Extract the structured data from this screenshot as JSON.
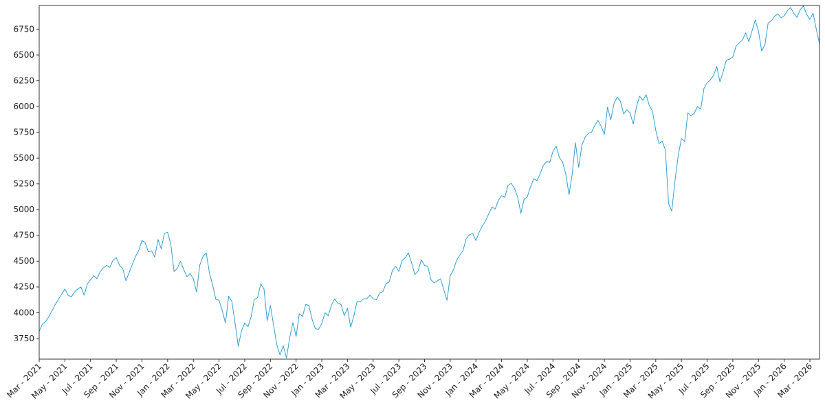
{
  "chart_data": {
    "type": "line",
    "title": "",
    "xlabel": "",
    "ylabel": "",
    "grid": false,
    "legend_position": "none",
    "line_color": "#2e9fd6",
    "axis_color": "#333333",
    "background": "#ffffff",
    "ylim": [
      3550,
      6980
    ],
    "y_ticks": [
      3750,
      4000,
      4250,
      4500,
      4750,
      5000,
      5250,
      5500,
      5750,
      6000,
      6250,
      6500,
      6750
    ],
    "points_per_month": 4,
    "x_ticks": [
      {
        "label": "Mar - 2021",
        "month": 0
      },
      {
        "label": "May - 2021",
        "month": 2
      },
      {
        "label": "Jul - 2021",
        "month": 4
      },
      {
        "label": "Sep - 2021",
        "month": 6
      },
      {
        "label": "Nov - 2021",
        "month": 8
      },
      {
        "label": "Jan - 2022",
        "month": 10
      },
      {
        "label": "Mar - 2022",
        "month": 12
      },
      {
        "label": "May - 2022",
        "month": 14
      },
      {
        "label": "Jul - 2022",
        "month": 16
      },
      {
        "label": "Sep - 2022",
        "month": 18
      },
      {
        "label": "Nov - 2022",
        "month": 20
      },
      {
        "label": "Jan - 2023",
        "month": 22
      },
      {
        "label": "Mar - 2023",
        "month": 24
      },
      {
        "label": "May - 2023",
        "month": 26
      },
      {
        "label": "Jul - 2023",
        "month": 28
      },
      {
        "label": "Sep - 2023",
        "month": 30
      },
      {
        "label": "Nov - 2023",
        "month": 32
      },
      {
        "label": "Jan - 2024",
        "month": 34
      },
      {
        "label": "Mar - 2024",
        "month": 36
      },
      {
        "label": "May - 2024",
        "month": 38
      },
      {
        "label": "Jul - 2024",
        "month": 40
      },
      {
        "label": "Sep - 2024",
        "month": 42
      },
      {
        "label": "Nov - 2024",
        "month": 44
      },
      {
        "label": "Jan - 2025",
        "month": 46
      },
      {
        "label": "Mar - 2025",
        "month": 48
      },
      {
        "label": "May - 2025",
        "month": 50
      },
      {
        "label": "Jul - 2025",
        "month": 52
      },
      {
        "label": "Sep - 2025",
        "month": 54
      },
      {
        "label": "Nov - 2025",
        "month": 56
      },
      {
        "label": "Jan - 2026",
        "month": 58
      },
      {
        "label": "Mar - 2026",
        "month": 60
      }
    ],
    "values": [
      3820,
      3890,
      3915,
      3960,
      4020,
      4080,
      4130,
      4180,
      4230,
      4170,
      4155,
      4200,
      4230,
      4250,
      4170,
      4280,
      4320,
      4360,
      4330,
      4400,
      4435,
      4460,
      4440,
      4510,
      4535,
      4460,
      4430,
      4310,
      4390,
      4470,
      4545,
      4605,
      4700,
      4680,
      4590,
      4600,
      4540,
      4710,
      4620,
      4770,
      4780,
      4660,
      4400,
      4430,
      4500,
      4420,
      4350,
      4380,
      4330,
      4200,
      4460,
      4545,
      4580,
      4390,
      4270,
      4130,
      4120,
      4025,
      3900,
      4160,
      4110,
      3900,
      3675,
      3825,
      3900,
      3865,
      3960,
      4130,
      4145,
      4280,
      4230,
      3925,
      4070,
      3875,
      3690,
      3590,
      3680,
      3560,
      3755,
      3905,
      3770,
      3990,
      3965,
      4080,
      4070,
      3935,
      3845,
      3840,
      3895,
      4000,
      3970,
      4070,
      4135,
      4090,
      4080,
      3970,
      4045,
      3860,
      3970,
      4110,
      4105,
      4135,
      4135,
      4170,
      4135,
      4125,
      4190,
      4205,
      4280,
      4300,
      4410,
      4450,
      4400,
      4505,
      4535,
      4580,
      4480,
      4370,
      4405,
      4515,
      4460,
      4450,
      4320,
      4290,
      4310,
      4330,
      4225,
      4120,
      4360,
      4415,
      4510,
      4560,
      4605,
      4720,
      4755,
      4770,
      4700,
      4780,
      4840,
      4890,
      4960,
      5025,
      5005,
      5090,
      5135,
      5120,
      5235,
      5255,
      5205,
      5125,
      4965,
      5100,
      5125,
      5220,
      5300,
      5280,
      5345,
      5430,
      5465,
      5460,
      5565,
      5615,
      5505,
      5460,
      5345,
      5145,
      5345,
      5650,
      5410,
      5625,
      5700,
      5740,
      5750,
      5815,
      5865,
      5810,
      5730,
      5995,
      5870,
      6030,
      6090,
      6050,
      5930,
      5970,
      5940,
      5830,
      6000,
      6100,
      6060,
      6115,
      6010,
      5955,
      5770,
      5640,
      5665,
      5580,
      5060,
      4985,
      5280,
      5525,
      5690,
      5660,
      5940,
      5910,
      5935,
      6000,
      5975,
      6175,
      6230,
      6260,
      6300,
      6390,
      6240,
      6340,
      6450,
      6460,
      6480,
      6585,
      6615,
      6645,
      6715,
      6630,
      6735,
      6840,
      6730,
      6540,
      6600,
      6810,
      6830,
      6875,
      6900,
      6860,
      6880,
      6930,
      6960,
      6905,
      6865,
      6940,
      6975,
      6895,
      6845,
      6905,
      6750,
      6610
    ]
  }
}
